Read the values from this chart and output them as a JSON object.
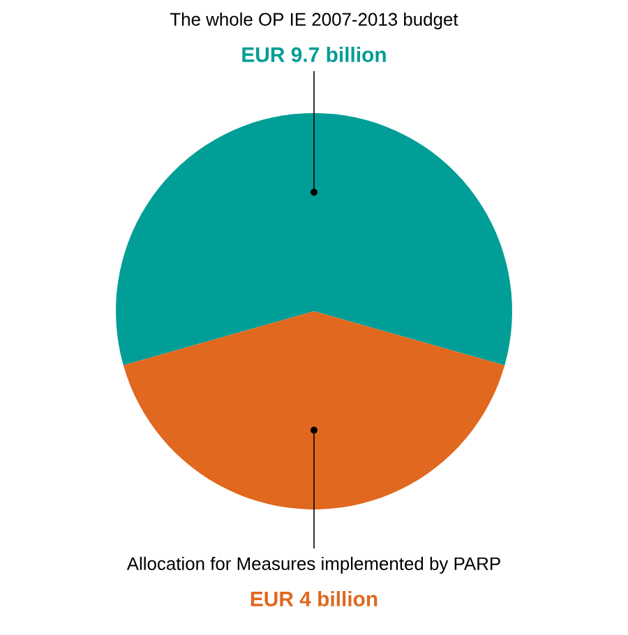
{
  "chart_data": {
    "type": "pie",
    "categories": [
      "The whole OP IE 2007-2013 budget",
      "Allocation for Measures implemented by PARP"
    ],
    "values": [
      58.8,
      41.2
    ],
    "value_labels": [
      "EUR 9.7 billion",
      "EUR 4 billion"
    ],
    "colors": [
      "#009e96",
      "#e0681f"
    ]
  }
}
